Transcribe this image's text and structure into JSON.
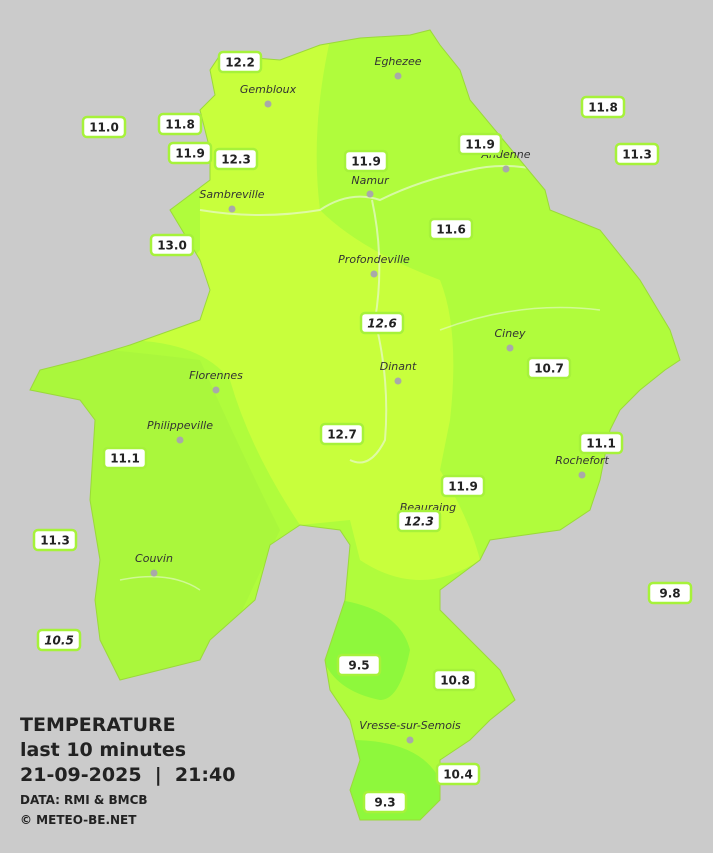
{
  "map": {
    "cities": [
      "Eghezee",
      "Gembloux",
      "Andenne",
      "Namur",
      "Sambreville",
      "Profondeville",
      "Ciney",
      "Dinant",
      "Florennes",
      "Philippeville",
      "Rochefort",
      "Beauraing",
      "Couvin",
      "Vresse-sur-Semois"
    ],
    "readings": [
      "12.2",
      "11.0",
      "11.8",
      "11.9",
      "12.3",
      "11.9",
      "11.9",
      "11.8",
      "11.3",
      "13.0",
      "11.6",
      "12.6",
      "10.7",
      "12.7",
      "11.1",
      "11.1",
      "11.9",
      "12.3",
      "11.3",
      "9.8",
      "10.5",
      "9.5",
      "10.8",
      "10.4",
      "9.3"
    ]
  },
  "legend": {
    "title": "TEMPERATURE",
    "period": "last 10 minutes",
    "timestamp": "21-09-2025  |  21:40",
    "source": "DATA: RMI & BMCB",
    "credit": "© METEO-BE.NET"
  }
}
